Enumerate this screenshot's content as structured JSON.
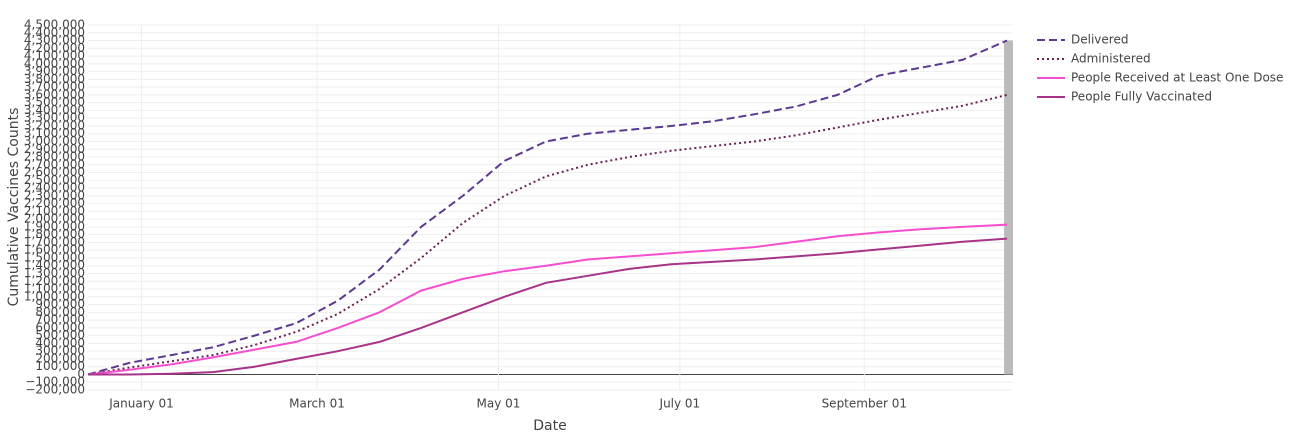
{
  "chart_data": {
    "type": "line",
    "x_label": "Date",
    "y_label": "Cumulative Vaccines Counts",
    "x": [
      "December 14",
      "December 28",
      "January 11",
      "January 25",
      "February 08",
      "February 22",
      "March 08",
      "March 22",
      "April 05",
      "April 19",
      "May 03",
      "May 17",
      "May 31",
      "June 14",
      "June 28",
      "July 12",
      "July 26",
      "August 09",
      "August 23",
      "September 06",
      "September 20",
      "October 04",
      "October 19"
    ],
    "xlim": [
      "December 14",
      "October 21"
    ],
    "xticks": [
      "January 01",
      "March 01",
      "May 01",
      "July 01",
      "September 01"
    ],
    "shade": [
      "October 18",
      "October 21"
    ],
    "series": [
      {
        "name": "Delivered",
        "color": "#5c3a91",
        "dash": "dash",
        "values": [
          0,
          150000,
          250000,
          350000,
          500000,
          660000,
          950000,
          1350000,
          1900000,
          2300000,
          2750000,
          3000000,
          3100000,
          3150000,
          3200000,
          3260000,
          3350000,
          3450000,
          3600000,
          3850000,
          3950000,
          4050000,
          4300000
        ]
      },
      {
        "name": "Administered",
        "color": "#6a1f55",
        "dash": "dot",
        "values": [
          0,
          90000,
          170000,
          250000,
          380000,
          550000,
          780000,
          1100000,
          1500000,
          1950000,
          2300000,
          2550000,
          2700000,
          2800000,
          2880000,
          2940000,
          3000000,
          3080000,
          3180000,
          3280000,
          3370000,
          3460000,
          3600000
        ]
      },
      {
        "name": "People Received at Least One Dose",
        "color": "#f54fcf",
        "dash": "solid",
        "values": [
          0,
          60000,
          130000,
          220000,
          320000,
          420000,
          600000,
          800000,
          1080000,
          1230000,
          1330000,
          1400000,
          1480000,
          1520000,
          1560000,
          1600000,
          1640000,
          1710000,
          1780000,
          1830000,
          1870000,
          1900000,
          1930000
        ]
      },
      {
        "name": "People Fully Vaccinated",
        "color": "#a83388",
        "dash": "solid",
        "values": [
          0,
          0,
          10000,
          30000,
          100000,
          200000,
          300000,
          420000,
          600000,
          800000,
          1000000,
          1180000,
          1270000,
          1360000,
          1420000,
          1450000,
          1480000,
          1520000,
          1560000,
          1610000,
          1660000,
          1710000,
          1750000
        ]
      }
    ],
    "ylim": [
      -200000,
      4500000
    ],
    "yticks": [
      {
        "value": -200000,
        "label": "−200,000"
      },
      {
        "value": -100000,
        "label": "−100,000"
      },
      0,
      {
        "value": 100000,
        "label": "100,000"
      },
      {
        "value": 200000,
        "label": "200,000"
      },
      {
        "value": 300000,
        "label": "300,000"
      },
      {
        "value": 400000,
        "label": "400,000"
      },
      {
        "value": 500000,
        "label": "500,000"
      },
      {
        "value": 600000,
        "label": "600,000"
      },
      {
        "value": 700000,
        "label": "700,000"
      },
      {
        "value": 800000,
        "label": "800,000"
      },
      {
        "value": 900000,
        "label": "900,000"
      },
      {
        "value": 1000000,
        "label": "1,000,000"
      },
      {
        "value": 1100000,
        "label": "1,100,000"
      },
      {
        "value": 1200000,
        "label": "1,200,000"
      },
      {
        "value": 1300000,
        "label": "1,300,000"
      },
      {
        "value": 1400000,
        "label": "1,400,000"
      },
      {
        "value": 1500000,
        "label": "1,500,000"
      },
      {
        "value": 1600000,
        "label": "1,600,000"
      },
      {
        "value": 1700000,
        "label": "1,700,000"
      },
      {
        "value": 1800000,
        "label": "1,800,000"
      },
      {
        "value": 1900000,
        "label": "1,900,000"
      },
      {
        "value": 2000000,
        "label": "2,000,000"
      },
      {
        "value": 2100000,
        "label": "2,100,000"
      },
      {
        "value": 2200000,
        "label": "2,200,000"
      },
      {
        "value": 2300000,
        "label": "2,300,000"
      },
      {
        "value": 2400000,
        "label": "2,400,000"
      },
      {
        "value": 2500000,
        "label": "2,500,000"
      },
      {
        "value": 2600000,
        "label": "2,600,000"
      },
      {
        "value": 2700000,
        "label": "2,700,000"
      },
      {
        "value": 2800000,
        "label": "2,800,000"
      },
      {
        "value": 2900000,
        "label": "2,900,000"
      },
      {
        "value": 3000000,
        "label": "3,000,000"
      },
      {
        "value": 3100000,
        "label": "3,100,000"
      },
      {
        "value": 3200000,
        "label": "3,200,000"
      },
      {
        "value": 3300000,
        "label": "3,300,000"
      },
      {
        "value": 3400000,
        "label": "3,400,000"
      },
      {
        "value": 3500000,
        "label": "3,500,000"
      },
      {
        "value": 3600000,
        "label": "3,600,000"
      },
      {
        "value": 3700000,
        "label": "3,700,000"
      },
      {
        "value": 3800000,
        "label": "3,800,000"
      },
      {
        "value": 3900000,
        "label": "3,900,000"
      },
      {
        "value": 4000000,
        "label": "4,000,000"
      },
      {
        "value": 4100000,
        "label": "4,100,000"
      },
      {
        "value": 4200000,
        "label": "4,200,000"
      },
      {
        "value": 4300000,
        "label": "4,300,000"
      },
      {
        "value": 4400000,
        "label": "4,400,000"
      },
      {
        "value": 4500000,
        "label": "4,500,000"
      }
    ],
    "grid": true
  }
}
